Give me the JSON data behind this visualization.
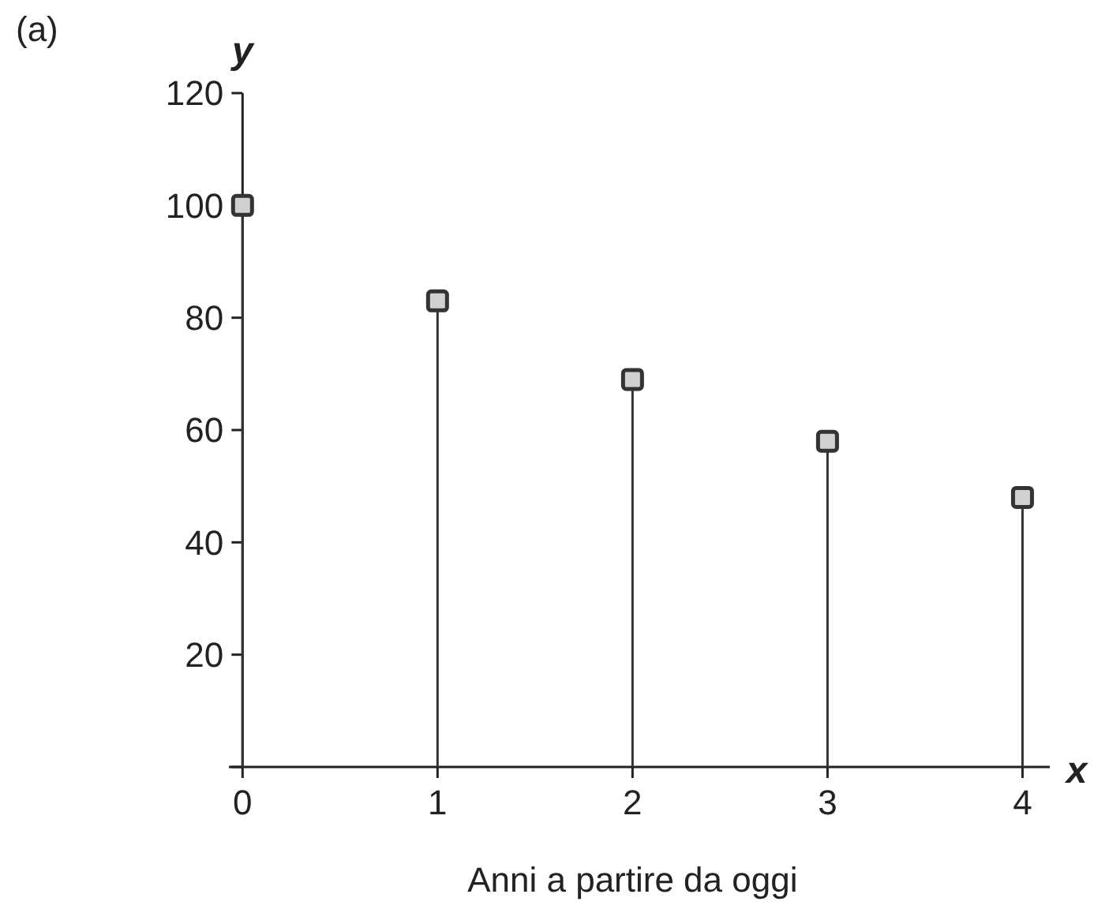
{
  "chart_data": {
    "type": "lollipop",
    "xlabel": "Anni a partire da oggi",
    "ylabel": "y",
    "annotations": [
      "(a)",
      "x"
    ],
    "x": [
      0,
      1,
      2,
      3,
      4
    ],
    "series": [
      {
        "color": "#333333",
        "values": [
          100,
          83,
          69,
          58,
          48
        ]
      }
    ],
    "xlim": [
      -0.07,
      4.14
    ],
    "ylim": [
      0,
      120
    ],
    "xticks": [
      0,
      1,
      2,
      3,
      4
    ],
    "yticks": [
      {
        "value": 0,
        "label": null
      },
      20,
      40,
      60,
      80,
      100,
      120
    ],
    "marker": "square"
  }
}
